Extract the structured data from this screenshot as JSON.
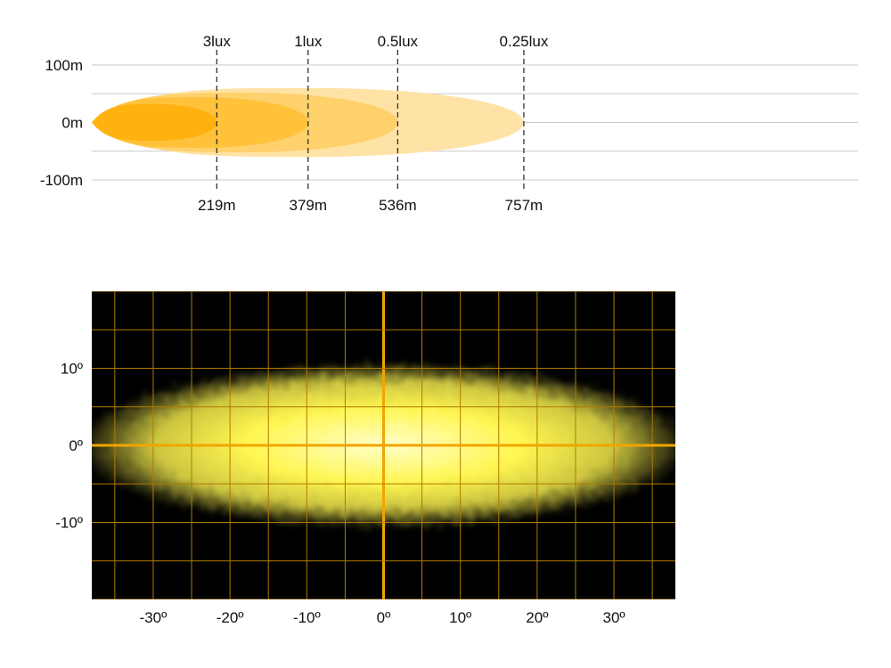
{
  "colors": {
    "beam_outer": "#FFE3A6",
    "beam_mid": "#FFD16D",
    "beam_inner": "#FFC23A",
    "beam_core": "#FFB20F",
    "hgrid": "#C8C8C8",
    "marker": "#222222",
    "plot_bg": "#000000",
    "grid_minor": "#B07A00",
    "grid_major": "#F0A500",
    "hotspot": "#FFF650",
    "hotspot_center": "#FFFFCC"
  },
  "chart_data": [
    {
      "type": "area",
      "title": "",
      "xlabel": "",
      "ylabel": "",
      "xlim": [
        0,
        1450
      ],
      "ylim": [
        -100,
        100
      ],
      "yticks": [
        {
          "value": 100,
          "label": "100m"
        },
        {
          "value": 0,
          "label": "0m"
        },
        {
          "value": -100,
          "label": "-100m"
        }
      ],
      "gridlines": [
        100,
        50,
        0,
        -50,
        -100
      ],
      "isolux": [
        {
          "label": "3lux",
          "distance": 219,
          "distance_label": "219m",
          "half_width": 32
        },
        {
          "label": "1lux",
          "distance": 379,
          "distance_label": "379m",
          "half_width": 44
        },
        {
          "label": "0.5lux",
          "distance": 536,
          "distance_label": "536m",
          "half_width": 52
        },
        {
          "label": "0.25lux",
          "distance": 757,
          "distance_label": "757m",
          "half_width": 60
        }
      ]
    },
    {
      "type": "heatmap",
      "title": "",
      "xlabel": "",
      "ylabel": "",
      "xlim": [
        -38,
        38
      ],
      "ylim": [
        -20,
        20
      ],
      "xticks": [
        {
          "value": -30,
          "label": "-30º"
        },
        {
          "value": -20,
          "label": "-20º"
        },
        {
          "value": -10,
          "label": "-10º"
        },
        {
          "value": 0,
          "label": "0º"
        },
        {
          "value": 10,
          "label": "10º"
        },
        {
          "value": 20,
          "label": "20º"
        },
        {
          "value": 30,
          "label": "30º"
        }
      ],
      "yticks": [
        {
          "value": 10,
          "label": "10º"
        },
        {
          "value": 0,
          "label": "0º"
        },
        {
          "value": -10,
          "label": "-10º"
        }
      ],
      "grid_step": 5,
      "beam": {
        "center": [
          0,
          0
        ],
        "half_width_deg": 37,
        "half_height_deg": 10
      }
    }
  ]
}
